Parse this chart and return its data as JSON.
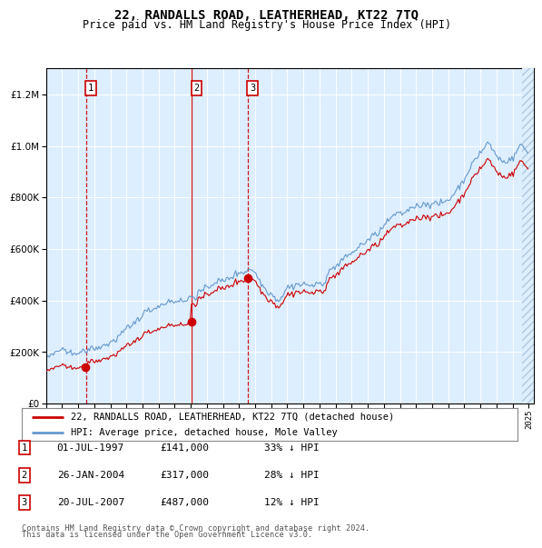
{
  "title": "22, RANDALLS ROAD, LEATHERHEAD, KT22 7TQ",
  "subtitle": "Price paid vs. HM Land Registry's House Price Index (HPI)",
  "legend_line1": "22, RANDALLS ROAD, LEATHERHEAD, KT22 7TQ (detached house)",
  "legend_line2": "HPI: Average price, detached house, Mole Valley",
  "sales": [
    {
      "num": 1,
      "date": "01-JUL-1997",
      "price": 141000,
      "pct": "33%",
      "dir": "↓"
    },
    {
      "num": 2,
      "date": "26-JAN-2004",
      "price": 317000,
      "pct": "28%",
      "dir": "↓"
    },
    {
      "num": 3,
      "date": "20-JUL-2007",
      "price": 487000,
      "pct": "12%",
      "dir": "↓"
    }
  ],
  "footnote1": "Contains HM Land Registry data © Crown copyright and database right 2024.",
  "footnote2": "This data is licensed under the Open Government Licence v3.0.",
  "red_color": "#cc0000",
  "blue_color": "#6699cc",
  "bg_color": "#ddeeff",
  "grid_color": "#ffffff",
  "ylim": [
    0,
    1300000
  ],
  "yticks": [
    0,
    200000,
    400000,
    600000,
    800000,
    1000000,
    1200000
  ],
  "sale1_year": 1997.5,
  "sale2_year": 2004.07,
  "sale3_year": 2007.55,
  "hpi_anchors_x": [
    1995.0,
    1996.0,
    1997.0,
    1998.0,
    1999.0,
    2000.0,
    2001.0,
    2002.0,
    2003.0,
    2004.0,
    2005.0,
    2006.0,
    2007.0,
    2007.8,
    2008.5,
    2009.0,
    2009.5,
    2010.0,
    2011.0,
    2012.0,
    2013.0,
    2014.0,
    2015.0,
    2016.0,
    2017.0,
    2018.0,
    2019.0,
    2020.0,
    2021.0,
    2022.0,
    2022.5,
    2023.0,
    2023.5,
    2024.0,
    2024.5,
    2024.99
  ],
  "hpi_anchors_y": [
    175000,
    195000,
    215000,
    240000,
    280000,
    330000,
    380000,
    420000,
    440000,
    460000,
    490000,
    520000,
    555000,
    575000,
    500000,
    455000,
    440000,
    470000,
    490000,
    490000,
    530000,
    590000,
    640000,
    690000,
    750000,
    790000,
    790000,
    800000,
    870000,
    960000,
    990000,
    940000,
    920000,
    950000,
    1000000,
    970000
  ],
  "noise_scale": 8000,
  "noise_seed": 42
}
